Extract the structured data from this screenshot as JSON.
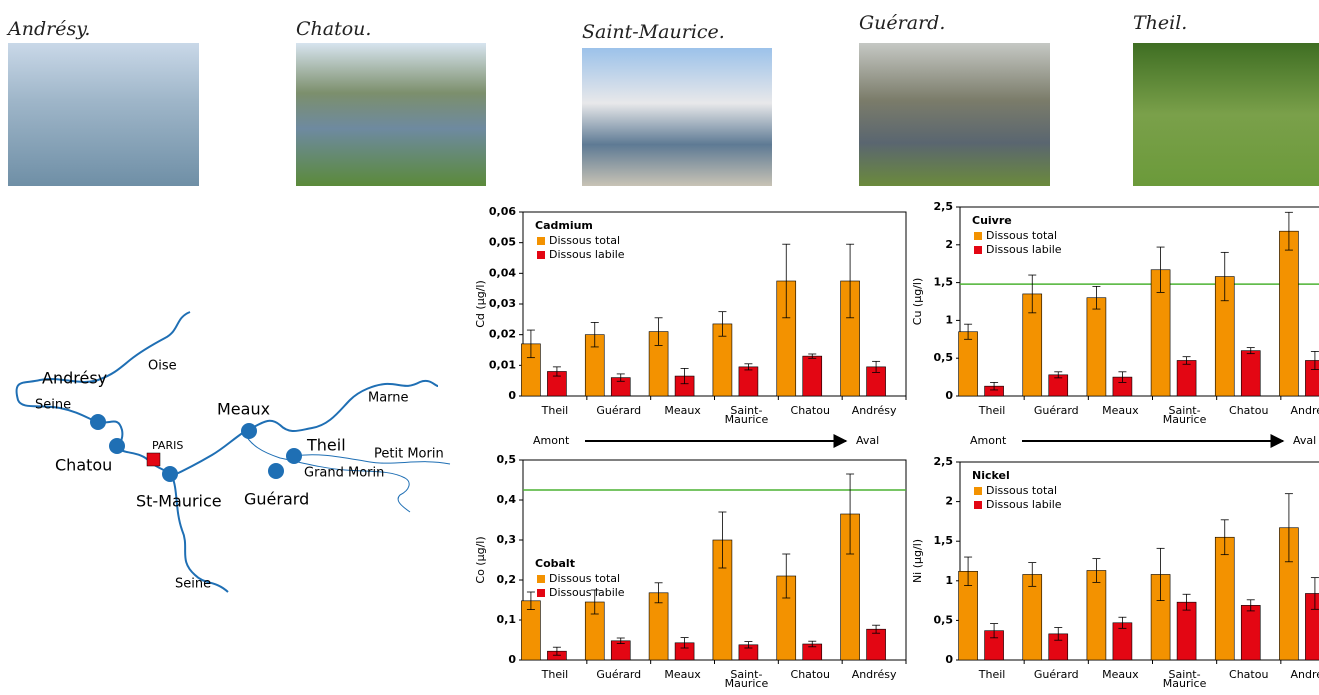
{
  "photos": [
    {
      "caption": "Andrésy."
    },
    {
      "caption": "Chatou."
    },
    {
      "caption": "Saint-Maurice."
    },
    {
      "caption": "Guérard."
    },
    {
      "caption": "Theil."
    }
  ],
  "map": {
    "labels": [
      "Andrésy",
      "Oise",
      "Seine",
      "Chatou",
      "PARIS",
      "St-Maurice",
      "Seine",
      "Meaux",
      "Marne",
      "Theil",
      "Petit Morin",
      "Grand Morin",
      "Guérard"
    ]
  },
  "chart_data": [
    {
      "type": "bar",
      "title": "Cadmium",
      "y_label": "Cd (µg/l)",
      "categories": [
        "Theil",
        "Guérard",
        "Meaux",
        "Saint-Maurice",
        "Chatou",
        "Andrésy"
      ],
      "series": [
        {
          "name": "Dissous total",
          "color": "#f39200",
          "values": [
            0.017,
            0.02,
            0.021,
            0.0235,
            0.0375,
            0.0375
          ],
          "errors": [
            0.0045,
            0.004,
            0.0045,
            0.004,
            0.012,
            0.012
          ]
        },
        {
          "name": "Dissous labile",
          "color": "#e30613",
          "values": [
            0.008,
            0.006,
            0.0065,
            0.0095,
            0.013,
            0.0095
          ],
          "errors": [
            0.0015,
            0.0012,
            0.0025,
            0.001,
            0.0007,
            0.0018
          ]
        }
      ],
      "ylim": [
        0,
        0.06
      ],
      "yticks": [
        0,
        {
          "value": 0.01,
          "label": "0,01"
        },
        {
          "value": 0.02,
          "label": "0,02"
        },
        {
          "value": 0.03,
          "label": "0,03"
        },
        {
          "value": 0.04,
          "label": "0,04"
        },
        {
          "value": 0.05,
          "label": "0,05"
        },
        {
          "value": 0.06,
          "label": "0,06"
        }
      ],
      "annotations": [
        "Amont",
        "Aval"
      ]
    },
    {
      "type": "bar",
      "title": "Cuivre",
      "y_label": "Cu (µg/l)",
      "categories": [
        "Theil",
        "Guérard",
        "Meaux",
        "Saint-Maurice",
        "Chatou",
        "Andrésy"
      ],
      "series": [
        {
          "name": "Dissous total",
          "color": "#f39200",
          "values": [
            0.85,
            1.35,
            1.3,
            1.67,
            1.58,
            2.18
          ],
          "errors": [
            0.1,
            0.25,
            0.15,
            0.3,
            0.32,
            0.25
          ]
        },
        {
          "name": "Dissous labile",
          "color": "#e30613",
          "values": [
            0.13,
            0.28,
            0.25,
            0.47,
            0.6,
            0.47
          ],
          "errors": [
            0.05,
            0.04,
            0.07,
            0.05,
            0.04,
            0.12
          ]
        }
      ],
      "ylim": [
        0,
        2.5
      ],
      "yticks": [
        0,
        {
          "value": 0.5,
          "label": "0,5"
        },
        1,
        {
          "value": 1.5,
          "label": "1,5"
        },
        2,
        {
          "value": 2.5,
          "label": "2,5"
        }
      ],
      "reference_line": {
        "value": 1.48,
        "color": "#4cb232"
      },
      "annotations": [
        "Amont",
        "Aval"
      ]
    },
    {
      "type": "bar",
      "title": "Cobalt",
      "y_label": "Co (µg/l)",
      "categories": [
        "Theil",
        "Guérard",
        "Meaux",
        "Saint-Maurice",
        "Chatou",
        "Andrésy"
      ],
      "series": [
        {
          "name": "Dissous total",
          "color": "#f39200",
          "values": [
            0.148,
            0.145,
            0.168,
            0.3,
            0.21,
            0.365
          ],
          "errors": [
            0.022,
            0.03,
            0.025,
            0.07,
            0.055,
            0.1
          ]
        },
        {
          "name": "Dissous labile",
          "color": "#e30613",
          "values": [
            0.022,
            0.048,
            0.043,
            0.038,
            0.04,
            0.077
          ],
          "errors": [
            0.01,
            0.007,
            0.013,
            0.008,
            0.007,
            0.01
          ]
        }
      ],
      "ylim": [
        0,
        0.5
      ],
      "yticks": [
        0,
        {
          "value": 0.1,
          "label": "0,1"
        },
        {
          "value": 0.2,
          "label": "0,2"
        },
        {
          "value": 0.3,
          "label": "0,3"
        },
        {
          "value": 0.4,
          "label": "0,4"
        },
        {
          "value": 0.5,
          "label": "0,5"
        }
      ],
      "reference_line": {
        "value": 0.425,
        "color": "#4cb232"
      }
    },
    {
      "type": "bar",
      "title": "Nickel",
      "y_label": "Ni (µg/l)",
      "categories": [
        "Theil",
        "Guérard",
        "Meaux",
        "Saint-Maurice",
        "Chatou",
        "Andrésy"
      ],
      "series": [
        {
          "name": "Dissous total",
          "color": "#f39200",
          "values": [
            1.12,
            1.08,
            1.13,
            1.08,
            1.55,
            1.67
          ],
          "errors": [
            0.18,
            0.15,
            0.15,
            0.33,
            0.22,
            0.43
          ]
        },
        {
          "name": "Dissous labile",
          "color": "#e30613",
          "values": [
            0.37,
            0.33,
            0.47,
            0.73,
            0.69,
            0.84
          ],
          "errors": [
            0.09,
            0.08,
            0.07,
            0.1,
            0.07,
            0.2
          ]
        }
      ],
      "ylim": [
        0,
        2.5
      ],
      "yticks": [
        0,
        {
          "value": 0.5,
          "label": "0,5"
        },
        1,
        {
          "value": 1.5,
          "label": "1,5"
        },
        2,
        {
          "value": 2.5,
          "label": "2,5"
        }
      ]
    }
  ]
}
